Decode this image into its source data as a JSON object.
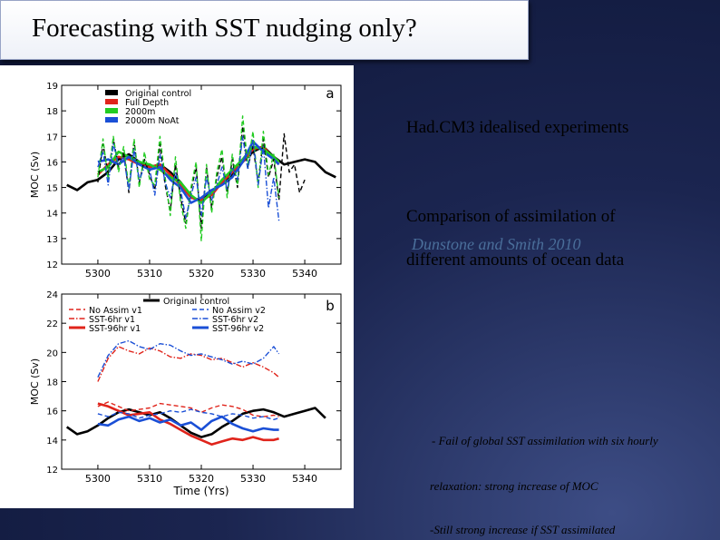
{
  "slide": {
    "title": "Forecasting with SST nudging only?",
    "subtitle": "Had.CM3 idealised experiments",
    "comparison_line1": "Comparison of assimilation of",
    "comparison_line2": "different amounts of ocean data",
    "citation": "Dunstone and Smith 2010",
    "bullets": [
      "- Fail of global SST assimilation with six hourly",
      "relaxation: strong increase of MOC",
      "-Still strong increase if SST assimilated"
    ]
  },
  "chart_data": [
    {
      "type": "line",
      "panel_label": "a",
      "ylabel": "MOC (Sv)",
      "xlabel": "",
      "xlim": [
        5293,
        5347
      ],
      "ylim": [
        12,
        19
      ],
      "xticks": [
        5300,
        5310,
        5320,
        5330,
        5340
      ],
      "yticks": [
        12,
        13,
        14,
        15,
        16,
        17,
        18,
        19
      ],
      "legend": "top-left",
      "series": [
        {
          "name": "Original control",
          "color": "#000000",
          "style": "solid",
          "x": [
            5294,
            5296,
            5298,
            5300,
            5302,
            5304,
            5306,
            5308,
            5310,
            5312,
            5314,
            5316,
            5318,
            5320,
            5322,
            5324,
            5326,
            5328,
            5330,
            5332,
            5334,
            5336,
            5338,
            5340,
            5342,
            5344,
            5346
          ],
          "y": [
            15.1,
            14.9,
            15.2,
            15.3,
            15.6,
            16.1,
            16.3,
            16.0,
            15.8,
            15.9,
            15.6,
            15.2,
            14.6,
            14.5,
            14.8,
            15.2,
            15.5,
            16.0,
            16.4,
            16.6,
            16.2,
            15.9,
            16.0,
            16.1,
            16.0,
            15.6,
            15.4
          ]
        },
        {
          "name": "Full Depth",
          "color": "#e0241b",
          "style": "solid",
          "x": [
            5300,
            5302,
            5304,
            5306,
            5308,
            5310,
            5312,
            5314,
            5316,
            5318,
            5320,
            5322,
            5324,
            5326,
            5328,
            5330,
            5332,
            5334,
            5335
          ],
          "y": [
            15.5,
            15.9,
            16.2,
            16.1,
            15.9,
            15.8,
            15.9,
            15.5,
            15.1,
            14.6,
            14.5,
            14.7,
            15.2,
            15.6,
            16.0,
            16.5,
            16.6,
            16.1,
            15.9
          ]
        },
        {
          "name": "2000m",
          "color": "#22cc22",
          "style": "solid",
          "x": [
            5300,
            5302,
            5304,
            5306,
            5308,
            5310,
            5312,
            5314,
            5316,
            5318,
            5320,
            5322,
            5324,
            5326,
            5328,
            5330,
            5332,
            5334,
            5335
          ],
          "y": [
            15.6,
            15.8,
            16.4,
            16.2,
            16.0,
            15.9,
            15.7,
            15.4,
            15.2,
            14.7,
            14.4,
            14.8,
            15.3,
            15.7,
            16.1,
            16.6,
            16.5,
            16.2,
            16.0
          ]
        },
        {
          "name": "2000m NoAt",
          "color": "#1a4fd6",
          "style": "solid",
          "x": [
            5300,
            5302,
            5304,
            5306,
            5308,
            5310,
            5312,
            5314,
            5316,
            5318,
            5320,
            5322,
            5324,
            5326,
            5328,
            5330,
            5332,
            5334,
            5335
          ],
          "y": [
            16.0,
            16.1,
            15.9,
            16.2,
            15.9,
            15.7,
            15.8,
            15.3,
            15.0,
            14.4,
            14.6,
            14.9,
            15.1,
            15.4,
            16.0,
            16.8,
            16.4,
            16.1,
            15.9
          ]
        },
        {
          "name": "",
          "color": "#000000",
          "style": "dashed",
          "x": [
            5300,
            5301,
            5302,
            5303,
            5304,
            5305,
            5306,
            5307,
            5308,
            5309,
            5310,
            5311,
            5312,
            5313,
            5314,
            5315,
            5316,
            5317,
            5318,
            5319,
            5320,
            5321,
            5322,
            5323,
            5324,
            5325,
            5326,
            5327,
            5328,
            5329,
            5330,
            5331,
            5332,
            5333,
            5334,
            5335,
            5336,
            5337,
            5338,
            5339,
            5340
          ],
          "y": [
            15.2,
            16.7,
            15.5,
            16.9,
            15.8,
            16.4,
            14.8,
            16.8,
            15.2,
            16.1,
            15.5,
            14.9,
            16.7,
            15.1,
            14.1,
            15.9,
            14.6,
            13.6,
            14.9,
            15.8,
            13.4,
            15.8,
            14.2,
            15.4,
            16.2,
            14.8,
            16.1,
            15.0,
            17.4,
            15.8,
            16.6,
            15.2,
            16.9,
            15.4,
            16.1,
            14.5,
            17.1,
            15.6,
            15.9,
            14.8,
            15.3
          ]
        },
        {
          "name": "",
          "color": "#22cc22",
          "style": "dashed",
          "x": [
            5300,
            5301,
            5302,
            5303,
            5304,
            5305,
            5306,
            5307,
            5308,
            5309,
            5310,
            5311,
            5312,
            5313,
            5314,
            5315,
            5316,
            5317,
            5318,
            5319,
            5320,
            5321,
            5322,
            5323,
            5324,
            5325,
            5326,
            5327,
            5328,
            5329,
            5330,
            5331,
            5332,
            5333,
            5334,
            5335
          ],
          "y": [
            15.4,
            16.9,
            15.3,
            17.0,
            15.6,
            16.6,
            15.0,
            16.9,
            15.0,
            16.4,
            15.3,
            15.1,
            17.0,
            15.4,
            13.9,
            16.2,
            14.4,
            13.4,
            15.0,
            16.0,
            12.9,
            15.9,
            14.0,
            15.6,
            16.5,
            14.6,
            16.3,
            15.1,
            17.8,
            15.9,
            17.2,
            15.0,
            17.2,
            15.5,
            16.3,
            14.6
          ]
        },
        {
          "name": "",
          "color": "#1a4fd6",
          "style": "dashdot",
          "x": [
            5300,
            5301,
            5302,
            5303,
            5304,
            5305,
            5306,
            5307,
            5308,
            5309,
            5310,
            5311,
            5312,
            5313,
            5314,
            5315,
            5316,
            5317,
            5318,
            5319,
            5320,
            5321,
            5322,
            5323,
            5324,
            5325,
            5326,
            5327,
            5328,
            5329,
            5330,
            5331,
            5332,
            5333,
            5334,
            5335
          ],
          "y": [
            15.8,
            16.4,
            15.1,
            16.7,
            15.9,
            16.2,
            14.9,
            16.5,
            15.3,
            15.8,
            15.7,
            14.7,
            16.3,
            15.2,
            14.6,
            15.6,
            14.9,
            13.8,
            14.7,
            15.4,
            13.9,
            15.4,
            14.5,
            15.1,
            15.8,
            14.9,
            15.8,
            15.3,
            17.0,
            15.7,
            16.9,
            15.1,
            16.6,
            14.2,
            15.4,
            13.7
          ]
        }
      ]
    },
    {
      "type": "line",
      "panel_label": "b",
      "ylabel": "MOC (Sv)",
      "xlabel": "Time (Yrs)",
      "xlim": [
        5293,
        5347
      ],
      "ylim": [
        12,
        24
      ],
      "xticks": [
        5300,
        5310,
        5320,
        5330,
        5340
      ],
      "yticks": [
        12,
        14,
        16,
        18,
        20,
        22,
        24
      ],
      "legend": "top",
      "series": [
        {
          "name": "Original control",
          "color": "#000000",
          "style": "solid",
          "x": [
            5294,
            5296,
            5298,
            5300,
            5302,
            5304,
            5306,
            5308,
            5310,
            5312,
            5314,
            5316,
            5318,
            5320,
            5322,
            5324,
            5326,
            5328,
            5330,
            5332,
            5334,
            5336,
            5338,
            5340,
            5342,
            5344
          ],
          "y": [
            14.9,
            14.4,
            14.6,
            15.0,
            15.5,
            15.9,
            16.1,
            15.9,
            15.7,
            15.9,
            15.5,
            15.0,
            14.5,
            14.2,
            14.4,
            14.9,
            15.3,
            15.8,
            16.0,
            16.1,
            15.9,
            15.6,
            15.8,
            16.0,
            16.2,
            15.5
          ]
        },
        {
          "name": "No Assim v1",
          "color": "#e0241b",
          "style": "dashed",
          "x": [
            5300,
            5302,
            5304,
            5306,
            5308,
            5310,
            5312,
            5314,
            5316,
            5318,
            5320,
            5322,
            5324,
            5326,
            5328,
            5330,
            5332,
            5334,
            5335
          ],
          "y": [
            16.3,
            16.6,
            16.3,
            16.0,
            16.1,
            16.2,
            16.5,
            16.4,
            16.3,
            16.2,
            15.9,
            16.2,
            16.4,
            16.3,
            16.1,
            15.7,
            15.6,
            15.7,
            15.6
          ]
        },
        {
          "name": "SST-6hr v1",
          "color": "#e0241b",
          "style": "dashdot",
          "x": [
            5300,
            5302,
            5304,
            5306,
            5308,
            5310,
            5312,
            5314,
            5316,
            5318,
            5320,
            5322,
            5324,
            5326,
            5328,
            5330,
            5332,
            5334,
            5335
          ],
          "y": [
            18.0,
            19.6,
            20.4,
            20.1,
            19.9,
            20.3,
            20.1,
            19.7,
            19.6,
            19.9,
            19.8,
            19.5,
            19.6,
            19.3,
            19.0,
            19.3,
            19.0,
            18.6,
            18.3
          ]
        },
        {
          "name": "SST-96hr v1",
          "color": "#e0241b",
          "style": "solid",
          "x": [
            5300,
            5302,
            5304,
            5306,
            5308,
            5310,
            5312,
            5314,
            5316,
            5318,
            5320,
            5322,
            5324,
            5326,
            5328,
            5330,
            5332,
            5334,
            5335
          ],
          "y": [
            16.5,
            16.3,
            16.0,
            15.7,
            15.8,
            15.9,
            15.4,
            15.1,
            14.7,
            14.3,
            14.0,
            13.7,
            13.9,
            14.1,
            14.0,
            14.2,
            14.0,
            14.0,
            14.1
          ]
        },
        {
          "name": "No Assim v2",
          "color": "#1a4fd6",
          "style": "dashed",
          "x": [
            5300,
            5302,
            5304,
            5306,
            5308,
            5310,
            5312,
            5314,
            5316,
            5318,
            5320,
            5322,
            5324,
            5326,
            5328,
            5330,
            5332,
            5334,
            5335
          ],
          "y": [
            15.8,
            15.6,
            15.9,
            15.8,
            15.5,
            15.7,
            15.8,
            16.0,
            15.9,
            16.1,
            15.9,
            15.8,
            15.6,
            15.8,
            15.7,
            15.5,
            15.6,
            15.4,
            15.5
          ]
        },
        {
          "name": "SST-6hr v2",
          "color": "#1a4fd6",
          "style": "dashdot",
          "x": [
            5300,
            5302,
            5304,
            5306,
            5308,
            5310,
            5312,
            5314,
            5316,
            5318,
            5320,
            5322,
            5324,
            5326,
            5328,
            5330,
            5332,
            5334,
            5335
          ],
          "y": [
            18.3,
            19.8,
            20.6,
            20.8,
            20.4,
            20.2,
            20.6,
            20.5,
            20.1,
            19.8,
            19.9,
            19.7,
            19.5,
            19.2,
            19.4,
            19.2,
            19.6,
            20.4,
            19.9
          ]
        },
        {
          "name": "SST-96hr v2",
          "color": "#1a4fd6",
          "style": "solid",
          "x": [
            5300,
            5302,
            5304,
            5306,
            5308,
            5310,
            5312,
            5314,
            5316,
            5318,
            5320,
            5322,
            5324,
            5326,
            5328,
            5330,
            5332,
            5334,
            5335
          ],
          "y": [
            15.1,
            15.0,
            15.4,
            15.6,
            15.3,
            15.5,
            15.2,
            15.4,
            15.0,
            15.2,
            14.7,
            15.3,
            15.6,
            15.1,
            14.8,
            14.6,
            14.8,
            14.7,
            14.7
          ]
        }
      ]
    }
  ]
}
